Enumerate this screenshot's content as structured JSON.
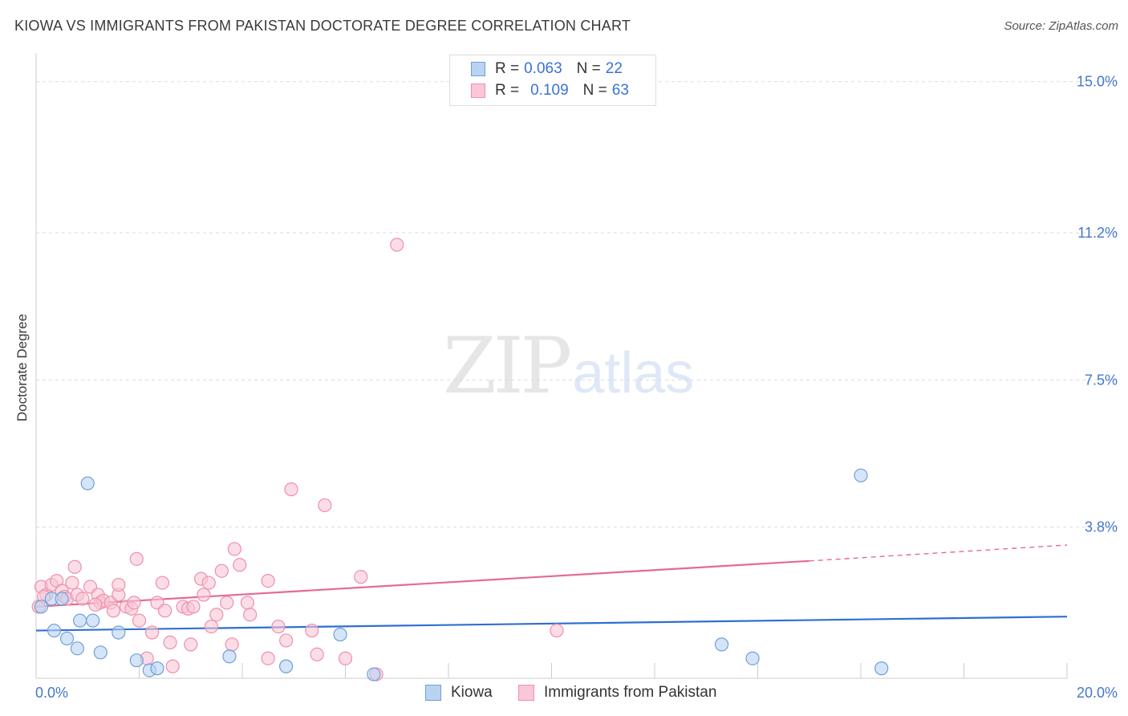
{
  "header": {
    "title": "KIOWA VS IMMIGRANTS FROM PAKISTAN DOCTORATE DEGREE CORRELATION CHART",
    "source": "Source: ZipAtlas.com"
  },
  "watermark": {
    "part1": "ZIP",
    "part2": "atlas"
  },
  "legend": {
    "rows": [
      {
        "r_label": "R =",
        "r_value": "0.063",
        "n_label": "N =",
        "n_value": "22"
      },
      {
        "r_label": "R =",
        "r_value": "0.109",
        "n_label": "N =",
        "n_value": "63"
      }
    ]
  },
  "colors": {
    "kiowa_fill": "#b9d3f2",
    "kiowa_stroke": "#6f9fd8",
    "kiowa_line": "#2f6fd0",
    "pak_fill": "#f9c7d6",
    "pak_stroke": "#ee8fac",
    "pak_line": "#e46a94",
    "grid": "#dcdcdc",
    "tick_text": "#4477cc"
  },
  "chart_data": {
    "type": "scatter",
    "title": "KIOWA VS IMMIGRANTS FROM PAKISTAN DOCTORATE DEGREE CORRELATION CHART",
    "xlabel": "",
    "ylabel": "Doctorate Degree",
    "xlim": [
      0,
      20
    ],
    "ylim": [
      0,
      15.6
    ],
    "x_tick_labels": [
      "0.0%",
      "20.0%"
    ],
    "y_ticks": [
      3.8,
      7.5,
      11.2,
      15.0
    ],
    "y_tick_labels": [
      "3.8%",
      "7.5%",
      "11.2%",
      "15.0%"
    ],
    "grid": true,
    "series": [
      {
        "name": "Kiowa",
        "r": 0.063,
        "n": 22,
        "points": [
          [
            0.1,
            1.8
          ],
          [
            0.3,
            2.0
          ],
          [
            0.35,
            1.2
          ],
          [
            0.5,
            2.0
          ],
          [
            0.6,
            1.0
          ],
          [
            0.8,
            0.75
          ],
          [
            0.85,
            1.45
          ],
          [
            1.0,
            4.9
          ],
          [
            1.1,
            1.45
          ],
          [
            1.25,
            0.65
          ],
          [
            1.6,
            1.15
          ],
          [
            1.95,
            0.45
          ],
          [
            2.2,
            0.2
          ],
          [
            2.35,
            0.25
          ],
          [
            3.75,
            0.55
          ],
          [
            4.85,
            0.3
          ],
          [
            5.9,
            1.1
          ],
          [
            6.55,
            0.1
          ],
          [
            13.3,
            0.85
          ],
          [
            13.9,
            0.5
          ],
          [
            16.0,
            5.1
          ],
          [
            16.4,
            0.25
          ]
        ],
        "trend": {
          "x0": 0,
          "y0": 1.2,
          "x1": 20,
          "y1": 1.55
        }
      },
      {
        "name": "Immigrants from Pakistan",
        "r": 0.109,
        "n": 63,
        "points": [
          [
            0.05,
            1.8
          ],
          [
            0.1,
            2.3
          ],
          [
            0.2,
            2.1
          ],
          [
            0.3,
            2.35
          ],
          [
            0.4,
            2.45
          ],
          [
            0.5,
            2.2
          ],
          [
            0.55,
            2.05
          ],
          [
            0.6,
            2.0
          ],
          [
            0.7,
            2.4
          ],
          [
            0.75,
            2.8
          ],
          [
            0.8,
            2.1
          ],
          [
            0.9,
            2.0
          ],
          [
            1.05,
            2.3
          ],
          [
            1.2,
            2.1
          ],
          [
            1.25,
            1.9
          ],
          [
            1.3,
            1.95
          ],
          [
            1.45,
            1.9
          ],
          [
            1.5,
            1.7
          ],
          [
            1.6,
            2.1
          ],
          [
            1.6,
            2.35
          ],
          [
            1.75,
            1.8
          ],
          [
            1.85,
            1.75
          ],
          [
            1.9,
            1.9
          ],
          [
            1.95,
            3.0
          ],
          [
            2.0,
            1.45
          ],
          [
            2.15,
            0.5
          ],
          [
            2.25,
            1.15
          ],
          [
            2.35,
            1.9
          ],
          [
            2.45,
            2.4
          ],
          [
            2.5,
            1.7
          ],
          [
            2.6,
            0.9
          ],
          [
            2.65,
            0.3
          ],
          [
            2.85,
            1.8
          ],
          [
            2.95,
            1.75
          ],
          [
            3.0,
            0.85
          ],
          [
            3.05,
            1.8
          ],
          [
            3.2,
            2.5
          ],
          [
            3.25,
            2.1
          ],
          [
            3.35,
            2.4
          ],
          [
            3.4,
            1.3
          ],
          [
            3.5,
            1.6
          ],
          [
            3.6,
            2.7
          ],
          [
            3.7,
            1.9
          ],
          [
            3.8,
            0.85
          ],
          [
            3.85,
            3.25
          ],
          [
            3.95,
            2.85
          ],
          [
            4.1,
            1.9
          ],
          [
            4.15,
            1.6
          ],
          [
            4.5,
            0.5
          ],
          [
            4.5,
            2.45
          ],
          [
            4.7,
            1.3
          ],
          [
            4.85,
            0.95
          ],
          [
            4.95,
            4.75
          ],
          [
            5.35,
            1.2
          ],
          [
            5.45,
            0.6
          ],
          [
            5.6,
            4.35
          ],
          [
            6.0,
            0.5
          ],
          [
            6.3,
            2.55
          ],
          [
            6.6,
            0.1
          ],
          [
            7.0,
            10.9
          ],
          [
            10.1,
            1.2
          ],
          [
            0.15,
            2.05
          ],
          [
            1.15,
            1.85
          ]
        ],
        "trend": {
          "x0": 0,
          "y0": 1.8,
          "x1": 15.0,
          "y1": 2.95,
          "dash_x1": 20,
          "dash_y1": 3.35
        }
      }
    ]
  },
  "bottom_legend": {
    "items": [
      {
        "label": "Kiowa"
      },
      {
        "label": "Immigrants from Pakistan"
      }
    ]
  }
}
